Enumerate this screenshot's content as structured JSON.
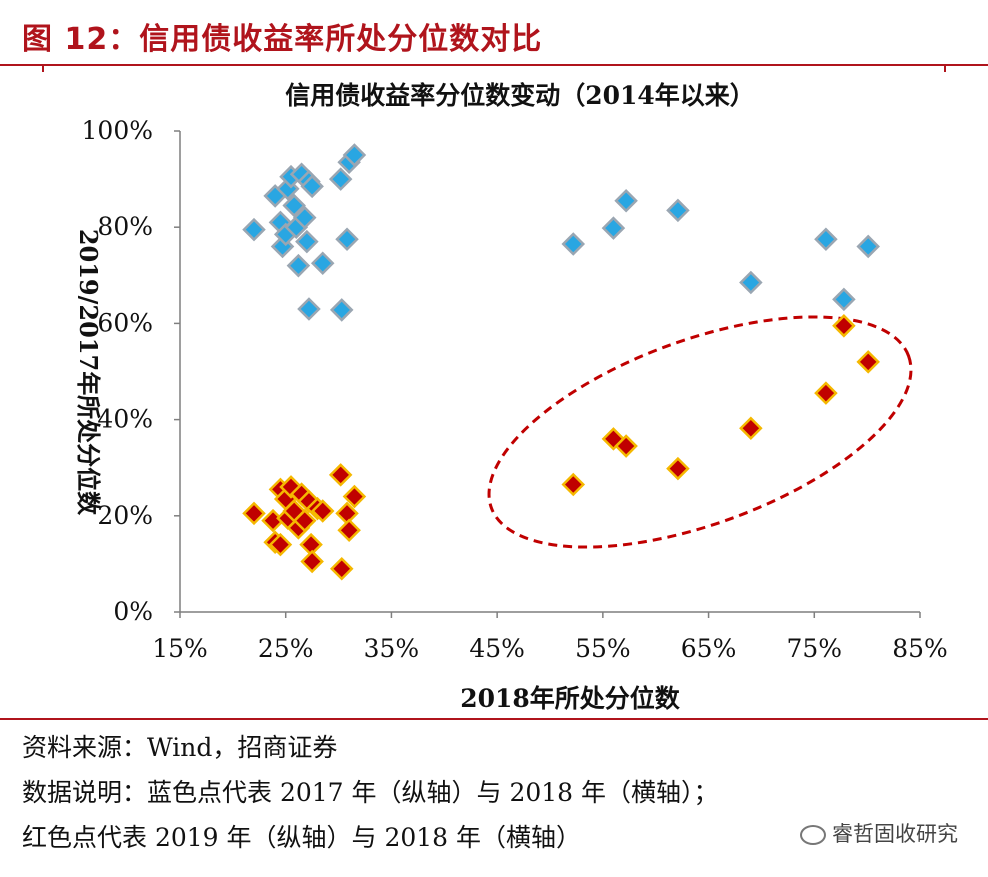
{
  "figure": {
    "title": "图 12：信用债收益率所处分位数对比",
    "source": "资料来源：Wind，招商证券",
    "description_line1": "数据说明：蓝色点代表 2017 年（纵轴）与 2018 年（横轴）；",
    "description_line2": "红色点代表 2019 年（纵轴）与 2018 年（横轴）",
    "watermark": "睿哲固收研究"
  },
  "colors": {
    "brand_red": "#b0141c",
    "blue_marker": "#29a6e2",
    "blue_marker_border": "#9aa6b2",
    "red_marker": "#c00000",
    "red_marker_border": "#f5b800",
    "ellipse": "#c00000"
  },
  "chart_data": {
    "type": "scatter",
    "title": "信用债收益率分位数变动（2014年以来）",
    "xlabel": "2018年所处分位数",
    "ylabel": "2019/2017年所处分位数",
    "xlim": [
      0.15,
      0.85
    ],
    "ylim": [
      0.0,
      1.0
    ],
    "x_ticks": [
      "15%",
      "25%",
      "35%",
      "45%",
      "55%",
      "65%",
      "75%",
      "85%"
    ],
    "y_ticks": [
      "0%",
      "20%",
      "40%",
      "60%",
      "80%",
      "100%"
    ],
    "grid": false,
    "legend": "none",
    "series": [
      {
        "key": "blue",
        "points": [
          {
            "x": 0.22,
            "y": 0.795
          },
          {
            "x": 0.24,
            "y": 0.865
          },
          {
            "x": 0.245,
            "y": 0.81
          },
          {
            "x": 0.247,
            "y": 0.76
          },
          {
            "x": 0.25,
            "y": 0.785
          },
          {
            "x": 0.252,
            "y": 0.88
          },
          {
            "x": 0.255,
            "y": 0.905
          },
          {
            "x": 0.258,
            "y": 0.845
          },
          {
            "x": 0.26,
            "y": 0.8
          },
          {
            "x": 0.262,
            "y": 0.72
          },
          {
            "x": 0.265,
            "y": 0.91
          },
          {
            "x": 0.268,
            "y": 0.82
          },
          {
            "x": 0.27,
            "y": 0.77
          },
          {
            "x": 0.272,
            "y": 0.895
          },
          {
            "x": 0.275,
            "y": 0.885
          },
          {
            "x": 0.272,
            "y": 0.63
          },
          {
            "x": 0.285,
            "y": 0.725
          },
          {
            "x": 0.303,
            "y": 0.628
          },
          {
            "x": 0.302,
            "y": 0.9
          },
          {
            "x": 0.308,
            "y": 0.775
          },
          {
            "x": 0.31,
            "y": 0.935
          },
          {
            "x": 0.315,
            "y": 0.95
          },
          {
            "x": 0.522,
            "y": 0.765
          },
          {
            "x": 0.56,
            "y": 0.798
          },
          {
            "x": 0.572,
            "y": 0.855
          },
          {
            "x": 0.621,
            "y": 0.835
          },
          {
            "x": 0.69,
            "y": 0.685
          },
          {
            "x": 0.761,
            "y": 0.775
          },
          {
            "x": 0.778,
            "y": 0.65
          },
          {
            "x": 0.801,
            "y": 0.76
          }
        ]
      },
      {
        "key": "red",
        "points": [
          {
            "x": 0.22,
            "y": 0.205
          },
          {
            "x": 0.238,
            "y": 0.19
          },
          {
            "x": 0.24,
            "y": 0.145
          },
          {
            "x": 0.245,
            "y": 0.14
          },
          {
            "x": 0.245,
            "y": 0.255
          },
          {
            "x": 0.25,
            "y": 0.235
          },
          {
            "x": 0.252,
            "y": 0.195
          },
          {
            "x": 0.255,
            "y": 0.26
          },
          {
            "x": 0.258,
            "y": 0.21
          },
          {
            "x": 0.262,
            "y": 0.175
          },
          {
            "x": 0.265,
            "y": 0.245
          },
          {
            "x": 0.268,
            "y": 0.19
          },
          {
            "x": 0.272,
            "y": 0.23
          },
          {
            "x": 0.274,
            "y": 0.14
          },
          {
            "x": 0.275,
            "y": 0.105
          },
          {
            "x": 0.28,
            "y": 0.215
          },
          {
            "x": 0.285,
            "y": 0.21
          },
          {
            "x": 0.302,
            "y": 0.285
          },
          {
            "x": 0.303,
            "y": 0.09
          },
          {
            "x": 0.308,
            "y": 0.205
          },
          {
            "x": 0.31,
            "y": 0.17
          },
          {
            "x": 0.315,
            "y": 0.24
          },
          {
            "x": 0.522,
            "y": 0.265
          },
          {
            "x": 0.56,
            "y": 0.36
          },
          {
            "x": 0.572,
            "y": 0.345
          },
          {
            "x": 0.621,
            "y": 0.298
          },
          {
            "x": 0.69,
            "y": 0.382
          },
          {
            "x": 0.761,
            "y": 0.455
          },
          {
            "x": 0.778,
            "y": 0.595
          },
          {
            "x": 0.801,
            "y": 0.52
          }
        ]
      }
    ],
    "annotations": [
      {
        "type": "dashed-ellipse",
        "around": "red points with x ≥ 50%"
      }
    ]
  }
}
